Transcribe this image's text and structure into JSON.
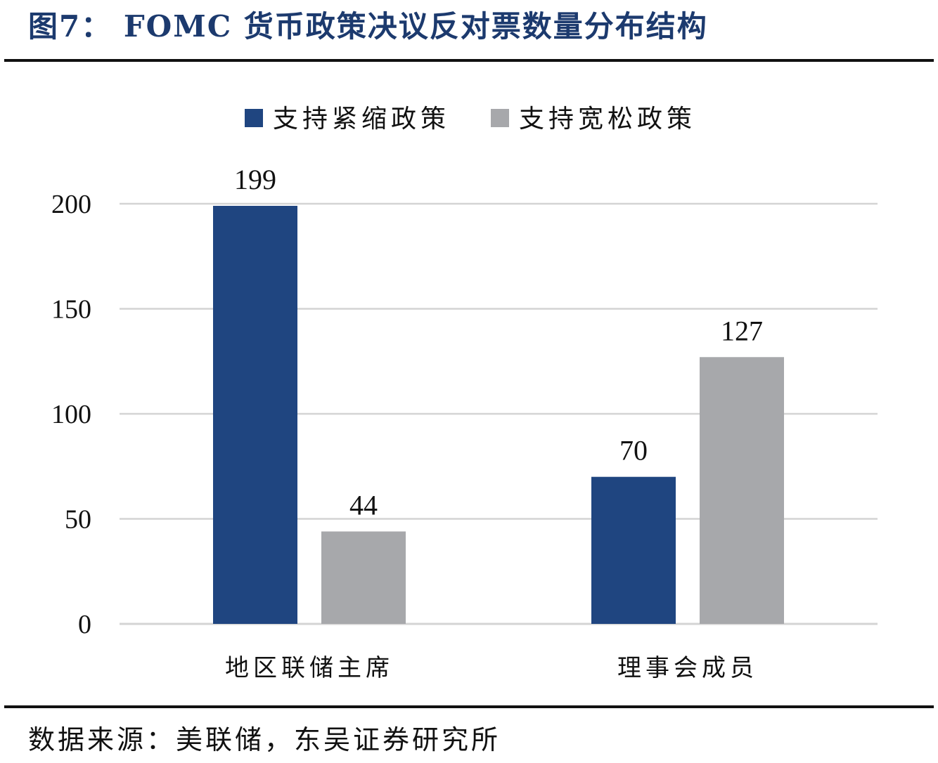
{
  "figure": {
    "title": "图7：  FOMC 货币政策决议反对票数量分布结构",
    "source": "数据来源：美联储，东吴证券研究所"
  },
  "colors": {
    "title": "#1c3a6e",
    "tightening": "#1f4580",
    "easing": "#a7a8ab",
    "grid": "#d4d4d4"
  },
  "chart_data": {
    "type": "bar",
    "categories": [
      "地区联储主席",
      "理事会成员"
    ],
    "series": [
      {
        "name": "支持紧缩政策",
        "values": [
          199,
          70
        ]
      },
      {
        "name": "支持宽松政策",
        "values": [
          44,
          127
        ]
      }
    ],
    "yticks": [
      0,
      50,
      100,
      150,
      200
    ],
    "ylim": [
      0,
      200
    ],
    "grid": true,
    "legend_position": "top-center",
    "data_labels": true
  }
}
